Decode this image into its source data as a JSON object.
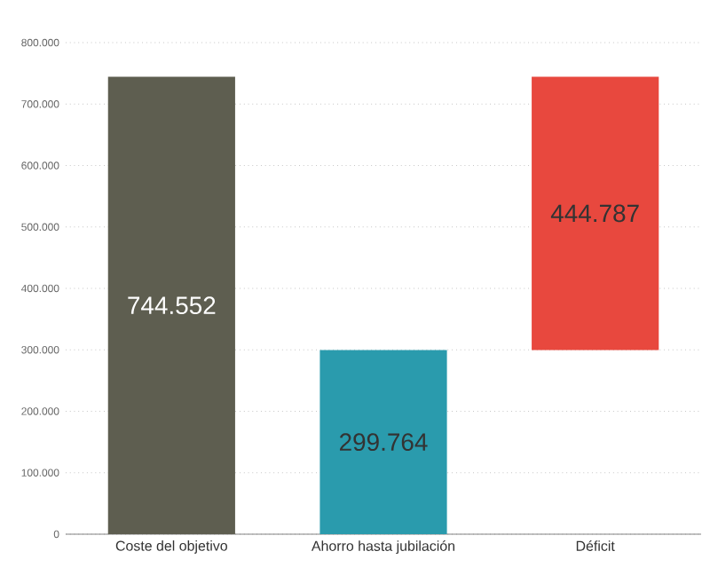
{
  "chart_data": {
    "type": "bar",
    "categories": [
      "Coste del objetivo",
      "Ahorro hasta jubilación",
      "Déficit"
    ],
    "values": [
      744552,
      299764,
      444787
    ],
    "base": [
      0,
      0,
      299764
    ],
    "colors": [
      "#5e5e50",
      "#2a9bad",
      "#e8483e"
    ],
    "value_labels": [
      "744.552",
      "299.764",
      "444.787"
    ],
    "ylim": [
      0,
      800000
    ],
    "yticks": [
      {
        "value": 0,
        "label": "0"
      },
      {
        "value": 100000,
        "label": "100.000"
      },
      {
        "value": 200000,
        "label": "200.000"
      },
      {
        "value": 300000,
        "label": "300.000"
      },
      {
        "value": 400000,
        "label": "400.000"
      },
      {
        "value": 500000,
        "label": "500.000"
      },
      {
        "value": 600000,
        "label": "600.000"
      },
      {
        "value": 700000,
        "label": "700.000"
      },
      {
        "value": 800000,
        "label": "800.000"
      }
    ],
    "grid": "y"
  }
}
